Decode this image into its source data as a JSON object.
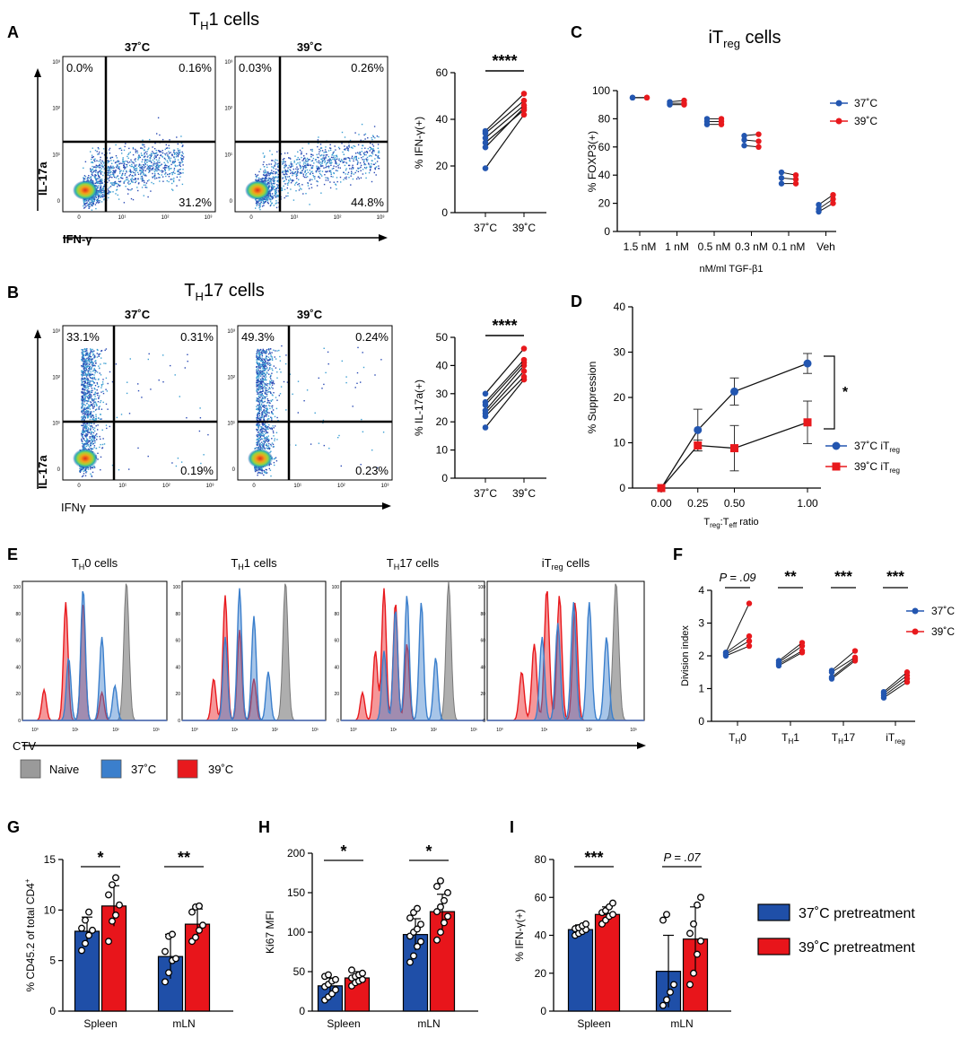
{
  "colors": {
    "c37": "#2356b0",
    "c39": "#e8191d",
    "naive": "#9a9a9a",
    "hist37": "#3b7fcc",
    "bar37": "#1f4fa8",
    "bar39": "#e8151b"
  },
  "panels": {
    "A": {
      "letter": "A",
      "title_main": "T",
      "title_sub": "H",
      "title_rest": "1 cells",
      "col1": "37˚C",
      "col2": "39˚C",
      "ylabel": "IL-17a",
      "xlabel": "IFN-γ",
      "q1": [
        "0.0%",
        "0.16%",
        "31.2%"
      ],
      "q2": [
        "0.03%",
        "0.26%",
        "44.8%"
      ]
    },
    "B": {
      "letter": "B",
      "title_main": "T",
      "title_sub": "H",
      "title_rest": "17 cells",
      "col1": "37˚C",
      "col2": "39˚C",
      "ylabel": "IL-17a",
      "xlabel": "IFNγ",
      "q1": [
        "33.1%",
        "0.31%",
        "0.19%"
      ],
      "q2": [
        "49.3%",
        "0.24%",
        "0.23%"
      ]
    },
    "E": {
      "letter": "E",
      "xlabel": "CTV",
      "titles": [
        {
          "m": "T",
          "s": "H",
          "r": "0 cells"
        },
        {
          "m": "T",
          "s": "H",
          "r": "1 cells"
        },
        {
          "m": "T",
          "s": "H",
          "r": "17 cells"
        },
        {
          "m": "iT",
          "s": "reg",
          "r": " cells"
        }
      ],
      "legend": [
        "Naive",
        "37˚C",
        "39˚C"
      ]
    },
    "C_letter": "C",
    "D_letter": "D",
    "F_letter": "F",
    "G_letter": "G",
    "H_letter": "H",
    "I_letter": "I",
    "GHI_legend": [
      "37˚C pretreatment",
      "39˚C pretreatment"
    ]
  },
  "flow_axis": {
    "ticks_y": [
      "10³",
      "10²",
      "10¹",
      "0"
    ],
    "ticks_x": [
      "0",
      "10¹",
      "10²",
      "10³"
    ]
  },
  "hist_axis": {
    "ticks_y": [
      "100",
      "80",
      "60",
      "40",
      "20",
      "0"
    ],
    "ticks_x": [
      "10⁰",
      "10¹",
      "10²",
      "10³"
    ]
  },
  "chart_data": [
    {
      "id": "A_paired",
      "type": "scatter",
      "ylabel": "% IFN-γ(+)",
      "ylim": [
        0,
        60
      ],
      "yticks": [
        0,
        20,
        40,
        60
      ],
      "categories": [
        "37˚C",
        "39˚C"
      ],
      "sig": "****",
      "pairs": [
        [
          19,
          42
        ],
        [
          28,
          45
        ],
        [
          30,
          44
        ],
        [
          32,
          46
        ],
        [
          34,
          48
        ],
        [
          35,
          51
        ]
      ]
    },
    {
      "id": "B_paired",
      "type": "scatter",
      "ylabel": "% IL-17a(+)",
      "ylim": [
        0,
        50
      ],
      "yticks": [
        0,
        10,
        20,
        30,
        40,
        50
      ],
      "categories": [
        "37˚C",
        "39˚C"
      ],
      "sig": "****",
      "pairs": [
        [
          18,
          35
        ],
        [
          22,
          36
        ],
        [
          23,
          38
        ],
        [
          24,
          40
        ],
        [
          26,
          41
        ],
        [
          27,
          42
        ],
        [
          30,
          46
        ]
      ]
    },
    {
      "id": "C",
      "type": "scatter",
      "title_main": "iT",
      "title_sub": "reg",
      "title_rest": " cells",
      "ylabel": "% FOXP3(+)",
      "xlabel": "nM/ml TGF-β1",
      "ylim": [
        0,
        100
      ],
      "yticks": [
        0,
        20,
        40,
        60,
        80,
        100
      ],
      "categories": [
        "1.5 nM",
        "1 nM",
        "0.5 nM",
        "0.3 nM",
        "0.1 nM",
        "Veh"
      ],
      "series": [
        {
          "name": "37˚C",
          "values": [
            [
              95,
              95,
              95
            ],
            [
              90,
              91,
              92
            ],
            [
              76,
              78,
              80
            ],
            [
              61,
              65,
              68
            ],
            [
              34,
              38,
              42
            ],
            [
              14,
              16,
              19
            ]
          ]
        },
        {
          "name": "39˚C",
          "values": [
            [
              95,
              95,
              95
            ],
            [
              90,
              91,
              93
            ],
            [
              76,
              78,
              80
            ],
            [
              60,
              64,
              69
            ],
            [
              34,
              37,
              40
            ],
            [
              20,
              23,
              26
            ]
          ]
        }
      ]
    },
    {
      "id": "D",
      "type": "line",
      "ylabel": "% Suppression",
      "xlabel_main": "T",
      "xlabel_sub1": "reg",
      "xlabel_mid": ":T",
      "xlabel_sub2": "eff",
      "xlabel_rest": " ratio",
      "ylim": [
        0,
        40
      ],
      "yticks": [
        0,
        10,
        20,
        30,
        40
      ],
      "x": [
        0,
        0.25,
        0.5,
        1.0
      ],
      "xticks": [
        "0.00",
        "0.25",
        "0.50",
        "1.00"
      ],
      "sig": "*",
      "series": [
        {
          "name": "37˚C iT",
          "name_sub": "reg",
          "values": [
            0,
            12.8,
            21.3,
            27.5
          ],
          "err": [
            0,
            4.6,
            3.0,
            2.2
          ]
        },
        {
          "name": "39˚C iT",
          "name_sub": "reg",
          "values": [
            0,
            9.4,
            8.8,
            14.5
          ],
          "err": [
            0,
            1.2,
            5.0,
            4.7
          ]
        }
      ]
    },
    {
      "id": "F",
      "type": "scatter",
      "ylabel": "Division index",
      "ylim": [
        0,
        4
      ],
      "yticks": [
        0,
        1,
        2,
        3,
        4
      ],
      "categories": [
        {
          "m": "T",
          "s": "H",
          "r": "0"
        },
        {
          "m": "T",
          "s": "H",
          "r": "1"
        },
        {
          "m": "T",
          "s": "H",
          "r": "17"
        },
        {
          "m": "iT",
          "s": "reg",
          "r": ""
        }
      ],
      "sig": [
        "P = .09",
        "**",
        "***",
        "***"
      ],
      "series": [
        {
          "name": "37˚C"
        },
        {
          "name": "39˚C"
        }
      ],
      "pairs": [
        [
          [
            2.0,
            2.3
          ],
          [
            2.05,
            2.45
          ],
          [
            2.1,
            2.6
          ],
          [
            2.1,
            3.6
          ]
        ],
        [
          [
            1.7,
            2.1
          ],
          [
            1.75,
            2.15
          ],
          [
            1.8,
            2.3
          ],
          [
            1.85,
            2.4
          ]
        ],
        [
          [
            1.3,
            1.85
          ],
          [
            1.35,
            1.9
          ],
          [
            1.5,
            1.95
          ],
          [
            1.55,
            2.15
          ]
        ],
        [
          [
            0.72,
            1.2
          ],
          [
            0.78,
            1.3
          ],
          [
            0.85,
            1.4
          ],
          [
            0.9,
            1.5
          ]
        ]
      ]
    },
    {
      "id": "G",
      "type": "bar",
      "ylabel": "% CD45.2 of total CD4",
      "ylabel_sup": "+",
      "ylim": [
        0,
        15
      ],
      "yticks": [
        0,
        5,
        10,
        15
      ],
      "categories": [
        "Spleen",
        "mLN"
      ],
      "sig": [
        "*",
        "**"
      ],
      "series": [
        {
          "name": "37˚C pretreatment",
          "values": [
            7.9,
            5.4
          ],
          "err": [
            1.4,
            2.2
          ],
          "points": [
            [
              6.0,
              6.7,
              7.5,
              8.0,
              8.2,
              9.0,
              9.8
            ],
            [
              2.9,
              3.8,
              5.0,
              5.2,
              5.9,
              7.4,
              7.6
            ]
          ]
        },
        {
          "name": "39˚C pretreatment",
          "values": [
            10.4,
            8.6
          ],
          "err": [
            2.0,
            1.5
          ],
          "points": [
            [
              6.9,
              8.9,
              9.5,
              10.5,
              11.5,
              12.5,
              13.2
            ],
            [
              6.9,
              7.3,
              8.0,
              8.5,
              9.8,
              10.3,
              10.4
            ]
          ]
        }
      ]
    },
    {
      "id": "H",
      "type": "bar",
      "ylabel": "Ki67 MFI",
      "ylim": [
        0,
        200
      ],
      "yticks": [
        0,
        50,
        100,
        150,
        200
      ],
      "categories": [
        "Spleen",
        "mLN"
      ],
      "sig": [
        "*",
        "*"
      ],
      "series": [
        {
          "name": "37˚C pretreatment",
          "values": [
            32,
            97
          ],
          "err": [
            10,
            20
          ],
          "points": [
            [
              14,
              18,
              22,
              27,
              31,
              34,
              38,
              40,
              44,
              46
            ],
            [
              62,
              70,
              82,
              88,
              95,
              100,
              104,
              110,
              118,
              125,
              130
            ]
          ]
        },
        {
          "name": "39˚C pretreatment",
          "values": [
            42,
            126
          ],
          "err": [
            8,
            22
          ],
          "points": [
            [
              32,
              36,
              38,
              40,
              42,
              44,
              46,
              48,
              52
            ],
            [
              90,
              100,
              112,
              120,
              126,
              132,
              140,
              150,
              158,
              165
            ]
          ]
        }
      ]
    },
    {
      "id": "I",
      "type": "bar",
      "ylabel": "% IFN-γ(+)",
      "ylim": [
        0,
        80
      ],
      "yticks": [
        0,
        20,
        40,
        60,
        80
      ],
      "categories": [
        "Spleen",
        "mLN"
      ],
      "sig": [
        "***",
        "P = .07"
      ],
      "series": [
        {
          "name": "37˚C pretreatment",
          "values": [
            43,
            21
          ],
          "err": [
            2.5,
            19
          ],
          "points": [
            [
              40,
              41,
              42,
              43,
              43.5,
              44,
              45,
              46
            ],
            [
              3,
              6,
              10,
              14,
              48,
              51
            ]
          ]
        },
        {
          "name": "39˚C pretreatment",
          "values": [
            51,
            38
          ],
          "err": [
            4,
            17
          ],
          "points": [
            [
              46,
              48,
              50,
              51,
              52,
              53,
              55,
              57
            ],
            [
              14,
              20,
              30,
              37,
              41,
              46,
              56,
              60
            ]
          ]
        }
      ]
    }
  ]
}
